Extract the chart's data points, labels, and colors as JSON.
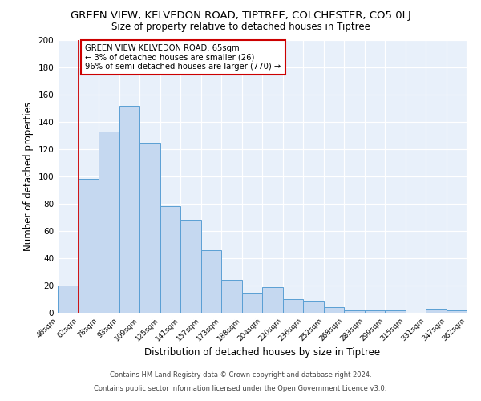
{
  "title": "GREEN VIEW, KELVEDON ROAD, TIPTREE, COLCHESTER, CO5 0LJ",
  "subtitle": "Size of property relative to detached houses in Tiptree",
  "xlabel": "Distribution of detached houses by size in Tiptree",
  "ylabel": "Number of detached properties",
  "bar_color": "#c5d8f0",
  "bar_edge_color": "#5a9fd4",
  "background_color": "#e8f0fa",
  "vline_color": "#cc0000",
  "vline_x": 1,
  "annotation_line1": "GREEN VIEW KELVEDON ROAD: 65sqm",
  "annotation_line2": "← 3% of detached houses are smaller (26)",
  "annotation_line3": "96% of semi-detached houses are larger (770) →",
  "annotation_box_color": "#ffffff",
  "annotation_box_edge": "#cc0000",
  "bins": [
    "46sqm",
    "62sqm",
    "78sqm",
    "93sqm",
    "109sqm",
    "125sqm",
    "141sqm",
    "157sqm",
    "173sqm",
    "188sqm",
    "204sqm",
    "220sqm",
    "236sqm",
    "252sqm",
    "268sqm",
    "283sqm",
    "299sqm",
    "315sqm",
    "331sqm",
    "347sqm",
    "362sqm"
  ],
  "heights": [
    20,
    98,
    133,
    152,
    125,
    78,
    68,
    46,
    24,
    15,
    19,
    10,
    9,
    4,
    2,
    2,
    2,
    0,
    3,
    2,
    0
  ],
  "ylim": [
    0,
    200
  ],
  "yticks": [
    0,
    20,
    40,
    60,
    80,
    100,
    120,
    140,
    160,
    180,
    200
  ],
  "footer1": "Contains HM Land Registry data © Crown copyright and database right 2024.",
  "footer2": "Contains public sector information licensed under the Open Government Licence v3.0."
}
